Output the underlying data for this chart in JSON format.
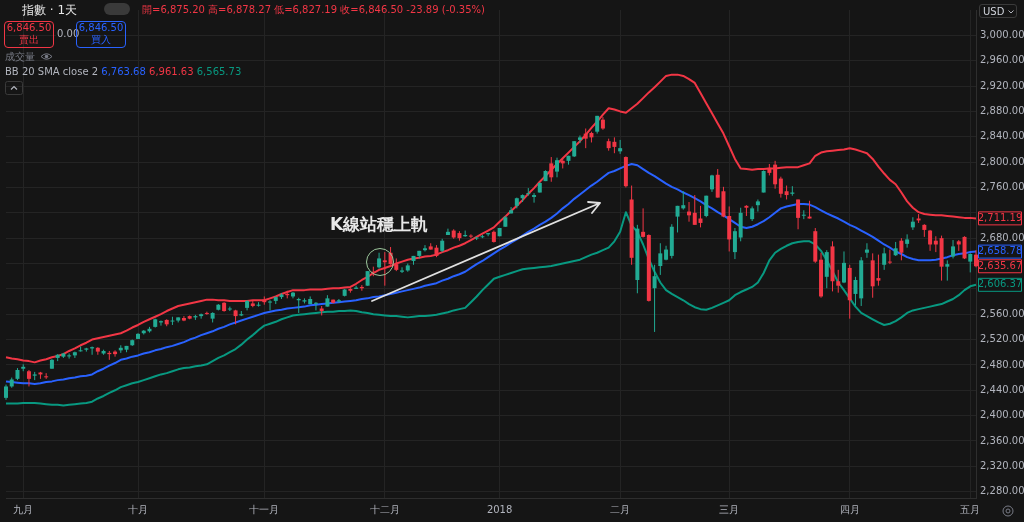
{
  "chart_data": {
    "type": "candlestick",
    "title": "指數 · 1天",
    "categories": [
      null,
      null,
      null,
      "九月",
      null,
      null,
      null,
      null,
      null,
      null,
      null,
      null,
      null,
      null,
      null,
      null,
      null,
      null,
      null,
      null,
      null,
      null,
      null,
      "十月",
      null,
      null,
      null,
      null,
      null,
      null,
      null,
      null,
      null,
      null,
      null,
      null,
      null,
      null,
      null,
      null,
      null,
      null,
      null,
      null,
      null,
      "十一月",
      null,
      null,
      null,
      null,
      null,
      null,
      null,
      null,
      null,
      null,
      null,
      null,
      null,
      null,
      null,
      null,
      null,
      null,
      null,
      null,
      "十二月",
      null,
      null,
      null,
      null,
      null,
      null,
      null,
      null,
      null,
      null,
      null,
      null,
      null,
      null,
      null,
      null,
      null,
      null,
      null,
      "2018",
      null,
      null,
      null,
      null,
      null,
      null,
      null,
      null,
      null,
      null,
      null,
      null,
      null,
      null,
      null,
      null,
      null,
      null,
      null,
      null,
      "二月",
      null,
      null,
      null,
      null,
      null,
      null,
      null,
      null,
      null,
      null,
      null,
      null,
      null,
      null,
      null,
      null,
      null,
      null,
      "三月",
      null,
      null,
      null,
      null,
      null,
      null,
      null,
      null,
      null,
      null,
      null,
      null,
      null,
      null,
      null,
      null,
      null,
      null,
      null,
      null,
      "四月",
      null,
      null,
      null,
      null,
      null,
      null,
      null,
      null,
      null,
      null,
      null,
      null,
      null,
      null,
      null,
      null,
      null,
      null,
      null,
      null,
      "五月",
      null
    ],
    "ohlc": [
      [
        2428,
        2449,
        2425,
        2446
      ],
      [
        2446,
        2460,
        2444,
        2457
      ],
      [
        2458,
        2475,
        2456,
        2472
      ],
      [
        2474,
        2481,
        2470,
        2477
      ],
      [
        2470,
        2472,
        2446,
        2458
      ],
      [
        2463,
        2469,
        2456,
        2465
      ],
      [
        2468,
        2469,
        2458,
        2465
      ],
      [
        2462,
        2467,
        2458,
        2461
      ],
      [
        2474,
        2489,
        2474,
        2488
      ],
      [
        2491,
        2497,
        2486,
        2496
      ],
      [
        2493,
        2499,
        2491,
        2498
      ],
      [
        2494,
        2498,
        2490,
        2495
      ],
      [
        2495,
        2501,
        2491,
        2500
      ],
      [
        2502,
        2509,
        2501,
        2503
      ],
      [
        2504,
        2507,
        2501,
        2506
      ],
      [
        2506,
        2509,
        2496,
        2508
      ],
      [
        2507,
        2508,
        2496,
        2501
      ],
      [
        2498,
        2504,
        2496,
        2502
      ],
      [
        2499,
        2502,
        2488,
        2497
      ],
      [
        2501,
        2503,
        2493,
        2497
      ],
      [
        2503,
        2511,
        2499,
        2507
      ],
      [
        2504,
        2510,
        2500,
        2510
      ],
      [
        2511,
        2520,
        2510,
        2519
      ],
      [
        2521,
        2530,
        2521,
        2529
      ],
      [
        2530,
        2535,
        2528,
        2534
      ],
      [
        2533,
        2540,
        2531,
        2537
      ],
      [
        2540,
        2553,
        2539,
        2552
      ],
      [
        2547,
        2550,
        2542,
        2549
      ],
      [
        2551,
        2552,
        2541,
        2544
      ],
      [
        2549,
        2556,
        2543,
        2550
      ],
      [
        2550,
        2555,
        2547,
        2555
      ],
      [
        2554,
        2557,
        2549,
        2550
      ],
      [
        2557,
        2558,
        2552,
        2553
      ],
      [
        2555,
        2559,
        2551,
        2557
      ],
      [
        2557,
        2561,
        2553,
        2560
      ],
      [
        2562,
        2564,
        2559,
        2561
      ],
      [
        2553,
        2563,
        2547,
        2562
      ],
      [
        2567,
        2576,
        2566,
        2575
      ],
      [
        2578,
        2579,
        2564,
        2565
      ],
      [
        2568,
        2572,
        2565,
        2569
      ],
      [
        2566,
        2567,
        2544,
        2557
      ],
      [
        2558,
        2565,
        2557,
        2560
      ],
      [
        2570,
        2582,
        2566,
        2581
      ],
      [
        2577,
        2581,
        2571,
        2573
      ],
      [
        2574,
        2579,
        2572,
        2575
      ],
      [
        2583,
        2588,
        2575,
        2579
      ],
      [
        2579,
        2582,
        2566,
        2580
      ],
      [
        2581,
        2588,
        2576,
        2587
      ],
      [
        2587,
        2593,
        2584,
        2591
      ],
      [
        2592,
        2597,
        2585,
        2590
      ],
      [
        2588,
        2595,
        2585,
        2594
      ],
      [
        2582,
        2586,
        2562,
        2584
      ],
      [
        2580,
        2585,
        2577,
        2582
      ],
      [
        2576,
        2588,
        2576,
        2584
      ],
      [
        2577,
        2579,
        2566,
        2578
      ],
      [
        2569,
        2573,
        2558,
        2565
      ],
      [
        2572,
        2590,
        2572,
        2585
      ],
      [
        2583,
        2583,
        2577,
        2578
      ],
      [
        2580,
        2584,
        2578,
        2582
      ],
      [
        2589,
        2600,
        2588,
        2599
      ],
      [
        2600,
        2601,
        2594,
        2597
      ],
      [
        2600,
        2605,
        2600,
        2602
      ],
      [
        2603,
        2606,
        2597,
        2601
      ],
      [
        2605,
        2628,
        2605,
        2628
      ],
      [
        2627,
        2635,
        2620,
        2626
      ],
      [
        2634,
        2657,
        2632,
        2648
      ],
      [
        2645,
        2658,
        2605,
        2642
      ],
      [
        2657,
        2666,
        2638,
        2639
      ],
      [
        2639,
        2648,
        2628,
        2630
      ],
      [
        2627,
        2634,
        2625,
        2629
      ],
      [
        2629,
        2640,
        2627,
        2637
      ],
      [
        2644,
        2652,
        2638,
        2652
      ],
      [
        2652,
        2660,
        2648,
        2660
      ],
      [
        2661,
        2669,
        2659,
        2664
      ],
      [
        2667,
        2672,
        2662,
        2662
      ],
      [
        2665,
        2669,
        2650,
        2652
      ],
      [
        2660,
        2679,
        2658,
        2676
      ],
      [
        2685,
        2695,
        2685,
        2690
      ],
      [
        2692,
        2694,
        2679,
        2681
      ],
      [
        2688,
        2691,
        2676,
        2680
      ],
      [
        2683,
        2692,
        2682,
        2685
      ],
      [
        2684,
        2686,
        2680,
        2683
      ],
      [
        2680,
        2682,
        2677,
        2681
      ],
      [
        2682,
        2685,
        2680,
        2683
      ],
      [
        2686,
        2688,
        2683,
        2688
      ],
      [
        2690,
        2692,
        2673,
        2674
      ],
      [
        2683,
        2696,
        2683,
        2696
      ],
      [
        2698,
        2715,
        2698,
        2713
      ],
      [
        2719,
        2729,
        2719,
        2724
      ],
      [
        2731,
        2744,
        2727,
        2743
      ],
      [
        2743,
        2749,
        2737,
        2748
      ],
      [
        2750,
        2759,
        2747,
        2751
      ],
      [
        2745,
        2751,
        2736,
        2748
      ],
      [
        2752,
        2768,
        2752,
        2767
      ],
      [
        2770,
        2787,
        2770,
        2786
      ],
      [
        2798,
        2808,
        2769,
        2776
      ],
      [
        2785,
        2807,
        2776,
        2803
      ],
      [
        2802,
        2806,
        2790,
        2798
      ],
      [
        2802,
        2810,
        2796,
        2810
      ],
      [
        2809,
        2833,
        2808,
        2833
      ],
      [
        2835,
        2842,
        2830,
        2839
      ],
      [
        2845,
        2853,
        2822,
        2837
      ],
      [
        2846,
        2848,
        2831,
        2839
      ],
      [
        2848,
        2873,
        2845,
        2873
      ],
      [
        2867,
        2871,
        2851,
        2853
      ],
      [
        2833,
        2837,
        2818,
        2822
      ],
      [
        2832,
        2839,
        2814,
        2824
      ],
      [
        2817,
        2835,
        2813,
        2822
      ],
      [
        2808,
        2809,
        2760,
        2762
      ],
      [
        2741,
        2763,
        2638,
        2649
      ],
      [
        2614,
        2701,
        2593,
        2695
      ],
      [
        2690,
        2727,
        2681,
        2682
      ],
      [
        2685,
        2686,
        2580,
        2581
      ],
      [
        2601,
        2638,
        2532,
        2620
      ],
      [
        2636,
        2672,
        2622,
        2656
      ],
      [
        2646,
        2668,
        2645,
        2662
      ],
      [
        2652,
        2702,
        2648,
        2698
      ],
      [
        2714,
        2731,
        2689,
        2731
      ],
      [
        2727,
        2754,
        2725,
        2732
      ],
      [
        2722,
        2737,
        2706,
        2716
      ],
      [
        2720,
        2748,
        2701,
        2701
      ],
      [
        2711,
        2731,
        2697,
        2704
      ],
      [
        2715,
        2747,
        2713,
        2747
      ],
      [
        2757,
        2780,
        2753,
        2779
      ],
      [
        2780,
        2789,
        2744,
        2744
      ],
      [
        2754,
        2761,
        2713,
        2714
      ],
      [
        2715,
        2730,
        2659,
        2678
      ],
      [
        2658,
        2696,
        2647,
        2691
      ],
      [
        2681,
        2728,
        2675,
        2720
      ],
      [
        2731,
        2732,
        2715,
        2728
      ],
      [
        2710,
        2730,
        2707,
        2727
      ],
      [
        2732,
        2741,
        2722,
        2738
      ],
      [
        2752,
        2787,
        2752,
        2786
      ],
      [
        2791,
        2797,
        2779,
        2783
      ],
      [
        2796,
        2802,
        2758,
        2765
      ],
      [
        2774,
        2777,
        2744,
        2750
      ],
      [
        2754,
        2763,
        2741,
        2748
      ],
      [
        2750,
        2762,
        2747,
        2752
      ],
      [
        2741,
        2741,
        2694,
        2712
      ],
      [
        2716,
        2724,
        2710,
        2717
      ],
      [
        2714,
        2739,
        2711,
        2711
      ],
      [
        2691,
        2696,
        2641,
        2643
      ],
      [
        2646,
        2657,
        2586,
        2588
      ],
      [
        2619,
        2661,
        2601,
        2658
      ],
      [
        2667,
        2675,
        2596,
        2612
      ],
      [
        2612,
        2630,
        2594,
        2605
      ],
      [
        2610,
        2659,
        2609,
        2641
      ],
      [
        2633,
        2638,
        2553,
        2582
      ],
      [
        2592,
        2619,
        2574,
        2614
      ],
      [
        2585,
        2650,
        2573,
        2645
      ],
      [
        2657,
        2672,
        2649,
        2662
      ],
      [
        2645,
        2656,
        2586,
        2604
      ],
      [
        2617,
        2654,
        2605,
        2613
      ],
      [
        2638,
        2665,
        2630,
        2656
      ],
      [
        2643,
        2662,
        2639,
        2642
      ],
      [
        2653,
        2674,
        2652,
        2664
      ],
      [
        2676,
        2680,
        2645,
        2657
      ],
      [
        2671,
        2686,
        2665,
        2678
      ],
      [
        2697,
        2713,
        2693,
        2706
      ],
      [
        2711,
        2718,
        2704,
        2708
      ],
      [
        2701,
        2702,
        2682,
        2693
      ],
      [
        2692,
        2693,
        2660,
        2670
      ],
      [
        2676,
        2683,
        2658,
        2670
      ],
      [
        2680,
        2684,
        2613,
        2635
      ],
      [
        2635,
        2645,
        2613,
        2639
      ],
      [
        2651,
        2677,
        2648,
        2667
      ],
      [
        2675,
        2677,
        2660,
        2670
      ],
      [
        2682,
        2683,
        2647,
        2648
      ],
      [
        2643,
        2656,
        2626,
        2655
      ],
      [
        2654,
        2661,
        2634,
        2635.67
      ]
    ],
    "colors": [
      "#22ab94",
      "#22ab94",
      "#22ab94",
      "#22ab94",
      "#f23645",
      "#22ab94",
      "#f23645",
      "#f23645",
      "#22ab94",
      "#22ab94",
      "#22ab94",
      "#22ab94",
      "#22ab94",
      "#22ab94",
      "#22ab94",
      "#22ab94",
      "#f23645",
      "#22ab94",
      "#f23645",
      "#f23645",
      "#22ab94",
      "#22ab94",
      "#22ab94",
      "#22ab94",
      "#22ab94",
      "#22ab94",
      "#22ab94",
      "#22ab94",
      "#f23645",
      "#22ab94",
      "#22ab94",
      "#f23645",
      "#f23645",
      "#22ab94",
      "#22ab94",
      "#f23645",
      "#22ab94",
      "#22ab94",
      "#f23645",
      "#22ab94",
      "#f23645",
      "#22ab94",
      "#22ab94",
      "#f23645",
      "#22ab94",
      "#f23645",
      "#22ab94",
      "#22ab94",
      "#22ab94",
      "#f23645",
      "#22ab94",
      "#22ab94",
      "#22ab94",
      "#22ab94",
      "#22ab94",
      "#f23645",
      "#22ab94",
      "#f23645",
      "#22ab94",
      "#22ab94",
      "#f23645",
      "#22ab94",
      "#f23645",
      "#22ab94",
      "#f23645",
      "#22ab94",
      "#f23645",
      "#f23645",
      "#f23645",
      "#22ab94",
      "#22ab94",
      "#22ab94",
      "#22ab94",
      "#22ab94",
      "#f23645",
      "#f23645",
      "#22ab94",
      "#22ab94",
      "#f23645",
      "#f23645",
      "#22ab94",
      "#f23645",
      "#22ab94",
      "#22ab94",
      "#22ab94",
      "#f23645",
      "#22ab94",
      "#22ab94",
      "#22ab94",
      "#22ab94",
      "#22ab94",
      "#22ab94",
      "#22ab94",
      "#22ab94",
      "#22ab94",
      "#f23645",
      "#22ab94",
      "#f23645",
      "#22ab94",
      "#22ab94",
      "#22ab94",
      "#f23645",
      "#f23645",
      "#22ab94",
      "#f23645",
      "#f23645",
      "#f23645",
      "#22ab94",
      "#f23645",
      "#f23645",
      "#22ab94",
      "#f23645",
      "#f23645",
      "#22ab94",
      "#22ab94",
      "#22ab94",
      "#22ab94",
      "#22ab94",
      "#22ab94",
      "#f23645",
      "#f23645",
      "#f23645",
      "#22ab94",
      "#22ab94",
      "#f23645",
      "#f23645",
      "#f23645",
      "#22ab94",
      "#22ab94",
      "#f23645",
      "#22ab94",
      "#22ab94",
      "#22ab94",
      "#f23645",
      "#f23645",
      "#f23645",
      "#f23645",
      "#22ab94",
      "#f23645",
      "#22ab94",
      "#f23645",
      "#f23645",
      "#f23645",
      "#22ab94",
      "#f23645",
      "#f23645",
      "#22ab94",
      "#f23645",
      "#22ab94",
      "#22ab94",
      "#22ab94",
      "#f23645",
      "#f23645",
      "#22ab94",
      "#f23645",
      "#22ab94",
      "#f23645",
      "#22ab94",
      "#22ab94",
      "#f23645",
      "#f23645",
      "#f23645",
      "#f23645",
      "#f23645",
      "#22ab94",
      "#22ab94",
      "#f23645",
      "#f23645",
      "#22ab94",
      "#f23645"
    ],
    "series": [
      {
        "type": "line",
        "color": "#f23645",
        "values": [
          2492,
          2490,
          2489,
          2487,
          2486,
          2484,
          2487,
          2489,
          2492,
          2494,
          2497,
          2502,
          2506,
          2511,
          2515,
          2520,
          2522,
          2524,
          2526,
          2528,
          2530,
          2534,
          2539,
          2543,
          2548,
          2552,
          2556,
          2560,
          2565,
          2569,
          2573,
          2575,
          2577,
          2579,
          2581,
          2583,
          2583,
          2582,
          2582,
          2581,
          2581,
          2581,
          2581,
          2582,
          2582,
          2582,
          2585,
          2588,
          2592,
          2595,
          2598,
          2598,
          2598,
          2599,
          2599,
          2599,
          2600,
          2601,
          2601,
          2602,
          2603,
          2608,
          2614,
          2619,
          2625,
          2630,
          2633,
          2636,
          2640,
          2643,
          2646,
          2648,
          2649,
          2651,
          2652,
          2654,
          2658,
          2661,
          2665,
          2668,
          2672,
          2677,
          2682,
          2687,
          2692,
          2697,
          2706,
          2714,
          2723,
          2731,
          2740,
          2750,
          2759,
          2769,
          2778,
          2788,
          2797,
          2806,
          2815,
          2824,
          2833,
          2843,
          2854,
          2864,
          2875,
          2885,
          2883,
          2880,
          2878,
          2885,
          2892,
          2901,
          2910,
          2918,
          2927,
          2936,
          2938,
          2938,
          2936,
          2931,
          2925,
          2909,
          2893,
          2877,
          2861,
          2845,
          2825,
          2805,
          2790,
          2789,
          2788,
          2789,
          2789,
          2790,
          2790,
          2791,
          2792,
          2792,
          2792,
          2795,
          2798,
          2810,
          2815,
          2817,
          2818,
          2819,
          2820,
          2822,
          2820,
          2817,
          2814,
          2805,
          2793,
          2782,
          2772,
          2765,
          2752,
          2738,
          2728,
          2721,
          2718,
          2717,
          2716,
          2716,
          2715,
          2714,
          2713,
          2712,
          2712,
          2711.19
        ]
      },
      {
        "type": "line",
        "color": "#2962ff",
        "values": [
          2454,
          2453,
          2452,
          2451,
          2451,
          2450,
          2451,
          2453,
          2454,
          2456,
          2457,
          2459,
          2460,
          2462,
          2463,
          2465,
          2470,
          2474,
          2479,
          2483,
          2488,
          2490,
          2493,
          2495,
          2498,
          2500,
          2503,
          2505,
          2508,
          2510,
          2513,
          2516,
          2520,
          2523,
          2527,
          2530,
          2533,
          2537,
          2540,
          2544,
          2547,
          2550,
          2553,
          2556,
          2559,
          2562,
          2564,
          2566,
          2567,
          2569,
          2570,
          2571,
          2572,
          2574,
          2575,
          2576,
          2577,
          2578,
          2579,
          2580,
          2581,
          2582,
          2584,
          2585,
          2587,
          2588,
          2590,
          2592,
          2594,
          2596,
          2598,
          2600,
          2602,
          2605,
          2607,
          2609,
          2613,
          2616,
          2620,
          2623,
          2627,
          2633,
          2639,
          2644,
          2650,
          2656,
          2662,
          2667,
          2673,
          2678,
          2684,
          2690,
          2695,
          2701,
          2706,
          2712,
          2719,
          2727,
          2734,
          2742,
          2749,
          2756,
          2763,
          2769,
          2776,
          2783,
          2786,
          2790,
          2794,
          2797,
          2795,
          2789,
          2783,
          2778,
          2772,
          2766,
          2761,
          2757,
          2752,
          2748,
          2743,
          2738,
          2732,
          2727,
          2721,
          2716,
          2710,
          2704,
          2698,
          2696,
          2698,
          2702,
          2707,
          2713,
          2720,
          2727,
          2730,
          2732,
          2734,
          2734,
          2733,
          2729,
          2724,
          2719,
          2715,
          2711,
          2706,
          2701,
          2697,
          2692,
          2687,
          2682,
          2676,
          2670,
          2665,
          2659,
          2655,
          2650,
          2647,
          2645,
          2645,
          2645,
          2646,
          2648,
          2650,
          2653,
          2655,
          2656,
          2658,
          2658.78
        ]
      },
      {
        "type": "line",
        "color": "#089981",
        "values": [
          2419,
          2419,
          2419,
          2420,
          2420,
          2420,
          2419,
          2418,
          2417,
          2417,
          2416,
          2417,
          2418,
          2419,
          2420,
          2422,
          2427,
          2431,
          2436,
          2440,
          2445,
          2448,
          2451,
          2453,
          2456,
          2459,
          2462,
          2465,
          2467,
          2470,
          2473,
          2475,
          2476,
          2478,
          2479,
          2481,
          2486,
          2491,
          2495,
          2500,
          2505,
          2512,
          2520,
          2527,
          2535,
          2542,
          2545,
          2548,
          2552,
          2555,
          2558,
          2559,
          2560,
          2561,
          2562,
          2563,
          2564,
          2564,
          2565,
          2565,
          2566,
          2565,
          2563,
          2562,
          2560,
          2559,
          2558,
          2557,
          2557,
          2556,
          2555,
          2556,
          2557,
          2557,
          2558,
          2559,
          2561,
          2563,
          2566,
          2568,
          2570,
          2579,
          2588,
          2598,
          2607,
          2616,
          2619,
          2622,
          2625,
          2628,
          2631,
          2632,
          2633,
          2634,
          2635,
          2636,
          2638,
          2640,
          2642,
          2644,
          2646,
          2650,
          2654,
          2657,
          2661,
          2665,
          2675,
          2690,
          2721,
          2700,
          2690,
          2670,
          2647,
          2627,
          2610,
          2598,
          2592,
          2587,
          2582,
          2576,
          2571,
          2568,
          2567,
          2570,
          2574,
          2578,
          2582,
          2590,
          2595,
          2599,
          2603,
          2610,
          2625,
          2645,
          2657,
          2663,
          2668,
          2672,
          2674,
          2675,
          2675,
          2670,
          2660,
          2645,
          2628,
          2610,
          2598,
          2585,
          2572,
          2562,
          2557,
          2552,
          2547,
          2543,
          2545,
          2549,
          2555,
          2562,
          2566,
          2568,
          2570,
          2572,
          2574,
          2576,
          2580,
          2584,
          2590,
          2598,
          2604,
          2606.37
        ]
      }
    ],
    "ylim": [
      2270,
      3040
    ],
    "yticks": [
      {
        "value": 2280,
        "label": "2,280.00"
      },
      {
        "value": 2320,
        "label": "2,320.00"
      },
      {
        "value": 2360,
        "label": "2,360.00"
      },
      {
        "value": 2400,
        "label": "2,400.00"
      },
      {
        "value": 2440,
        "label": "2,440.00"
      },
      {
        "value": 2480,
        "label": "2,480.00"
      },
      {
        "value": 2520,
        "label": "2,520.00"
      },
      {
        "value": 2560,
        "label": "2,560.00"
      },
      {
        "value": 2600,
        "label": null
      },
      {
        "value": 2640,
        "label": null
      },
      {
        "value": 2680,
        "label": "2,680.00"
      },
      {
        "value": 2720,
        "label": null
      },
      {
        "value": 2760,
        "label": "2,760.00"
      },
      {
        "value": 2800,
        "label": "2,800.00"
      },
      {
        "value": 2840,
        "label": "2,840.00"
      },
      {
        "value": 2880,
        "label": "2,880.00"
      },
      {
        "value": 2920,
        "label": "2,920.00"
      },
      {
        "value": 2960,
        "label": "2,960.00"
      },
      {
        "value": 3000,
        "label": "3,000.00"
      }
    ],
    "grid": true,
    "marker": "none",
    "line_style": "solid",
    "annotations": [
      "開=6,875.20 高=6,878.27 低=6,827.19 收=6,846.50 -23.89 (-0.35%)",
      "6,846.50",
      "賣出",
      "0.00",
      "6,846.50",
      "買入",
      "成交量",
      "BB 20 SMA close 2",
      "6,763.68",
      "6,961.63",
      "6,565.73",
      "USD",
      "K線站穩上軌",
      {
        "text": "2,711.19",
        "y": 2711.19
      },
      {
        "text": "2,658.78",
        "y": 2658.78
      },
      {
        "text": "2,635.67",
        "y": 2635.67
      },
      {
        "text": "2,606.37",
        "y": 2606.37
      }
    ]
  }
}
